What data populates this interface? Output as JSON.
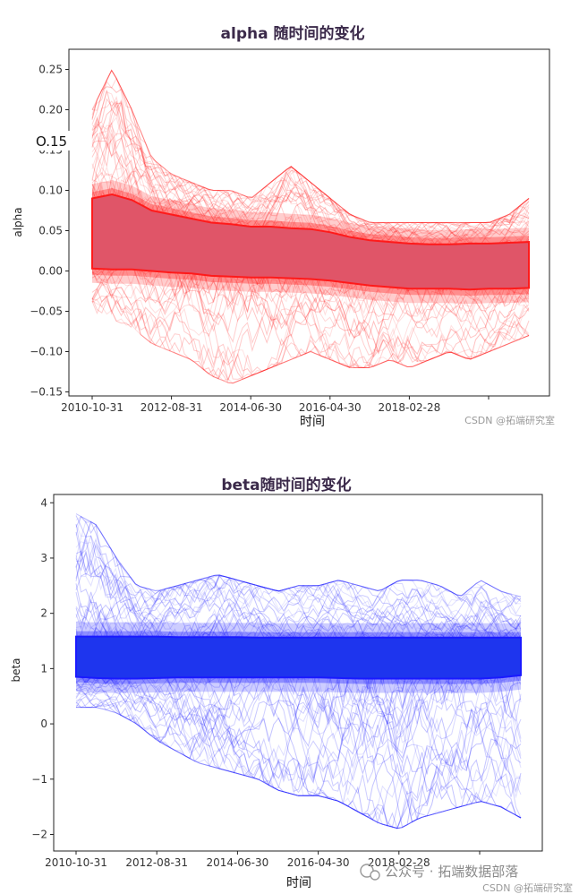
{
  "chart_data": [
    {
      "type": "line",
      "title": "alpha 随时间的变化",
      "xlabel": "时间",
      "ylabel": "alpha",
      "x_ticks": [
        "2010-10-31",
        "2012-08-31",
        "2014-06-30",
        "2016-04-30",
        "2018-02-28",
        ""
      ],
      "y_ticks": [
        0.25,
        0.2,
        0.15,
        0.1,
        0.05,
        0.0,
        -0.05,
        -0.1,
        -0.15
      ],
      "y_tick_labels": [
        "0.25",
        "0.20",
        "0.15",
        "0.10",
        "0.05",
        "0.00",
        "−0.05",
        "−0.10",
        "−0.15"
      ],
      "ylim": [
        -0.155,
        0.275
      ],
      "overlay_label": "O.15",
      "line_color": "#ff1a1a",
      "fill_color": "#e05568",
      "series": [
        {
          "x": [
            0,
            0.5,
            1,
            1.5,
            2,
            2.5,
            3,
            3.5,
            4,
            4.5,
            5,
            5.5,
            6,
            6.5,
            7,
            7.5,
            8,
            8.5,
            9,
            9.5,
            10,
            10.5,
            11
          ],
          "band_upper": [
            0.09,
            0.095,
            0.088,
            0.075,
            0.07,
            0.065,
            0.06,
            0.058,
            0.055,
            0.055,
            0.053,
            0.052,
            0.048,
            0.042,
            0.038,
            0.036,
            0.034,
            0.033,
            0.033,
            0.034,
            0.034,
            0.035,
            0.036
          ],
          "band_lower": [
            0.003,
            0.002,
            0.002,
            0.0,
            -0.002,
            -0.003,
            -0.006,
            -0.007,
            -0.008,
            -0.008,
            -0.009,
            -0.01,
            -0.012,
            -0.015,
            -0.018,
            -0.02,
            -0.022,
            -0.022,
            -0.022,
            -0.023,
            -0.022,
            -0.022,
            -0.021
          ],
          "envelope_upper": [
            0.2,
            0.25,
            0.2,
            0.14,
            0.12,
            0.11,
            0.1,
            0.1,
            0.09,
            0.11,
            0.13,
            0.11,
            0.09,
            0.07,
            0.06,
            0.06,
            0.06,
            0.06,
            0.06,
            0.06,
            0.06,
            0.07,
            0.09
          ],
          "envelope_lower": [
            -0.05,
            -0.06,
            -0.07,
            -0.09,
            -0.1,
            -0.11,
            -0.13,
            -0.14,
            -0.13,
            -0.12,
            -0.11,
            -0.1,
            -0.11,
            -0.12,
            -0.12,
            -0.11,
            -0.12,
            -0.11,
            -0.1,
            -0.11,
            -0.1,
            -0.09,
            -0.08
          ]
        }
      ]
    },
    {
      "type": "line",
      "title": "beta随时间的变化",
      "xlabel": "时间",
      "ylabel": "beta",
      "x_ticks": [
        "2010-10-31",
        "2012-08-31",
        "2014-06-30",
        "2016-04-30",
        "2018-02-28",
        ""
      ],
      "y_ticks": [
        4,
        3,
        2,
        1,
        0,
        -1,
        -2
      ],
      "y_tick_labels": [
        "4",
        "3",
        "2",
        "1",
        "0",
        "−1",
        "−2"
      ],
      "ylim": [
        -2.3,
        4.15
      ],
      "line_color": "#1a1aff",
      "fill_color": "#1e35ee",
      "series": [
        {
          "x": [
            0,
            0.5,
            1,
            1.5,
            2,
            2.5,
            3,
            3.5,
            4,
            4.5,
            5,
            5.5,
            6,
            6.5,
            7,
            7.5,
            8,
            8.5,
            9,
            9.5,
            10,
            10.5,
            11
          ],
          "band_upper": [
            1.58,
            1.58,
            1.58,
            1.58,
            1.58,
            1.57,
            1.57,
            1.57,
            1.57,
            1.56,
            1.56,
            1.56,
            1.56,
            1.56,
            1.56,
            1.56,
            1.56,
            1.56,
            1.56,
            1.56,
            1.56,
            1.56,
            1.56
          ],
          "band_lower": [
            0.85,
            0.83,
            0.82,
            0.82,
            0.83,
            0.84,
            0.84,
            0.84,
            0.84,
            0.84,
            0.84,
            0.84,
            0.84,
            0.83,
            0.82,
            0.82,
            0.82,
            0.82,
            0.82,
            0.82,
            0.82,
            0.84,
            0.88
          ],
          "envelope_upper": [
            3.8,
            3.6,
            3.0,
            2.5,
            2.4,
            2.5,
            2.6,
            2.7,
            2.6,
            2.5,
            2.4,
            2.5,
            2.5,
            2.6,
            2.5,
            2.4,
            2.6,
            2.6,
            2.5,
            2.3,
            2.6,
            2.4,
            2.3
          ],
          "envelope_lower": [
            0.3,
            0.3,
            0.2,
            0.0,
            -0.3,
            -0.5,
            -0.7,
            -0.8,
            -0.9,
            -1.0,
            -1.2,
            -1.3,
            -1.3,
            -1.4,
            -1.6,
            -1.8,
            -1.9,
            -1.7,
            -1.6,
            -1.5,
            -1.4,
            -1.5,
            -1.7
          ]
        }
      ]
    }
  ],
  "watermarks": {
    "top": "CSDN @拓端研究室",
    "bottom_brand": "公众号 · 拓端数据部落",
    "bottom_csdn": "CSDN @拓端研究室"
  }
}
